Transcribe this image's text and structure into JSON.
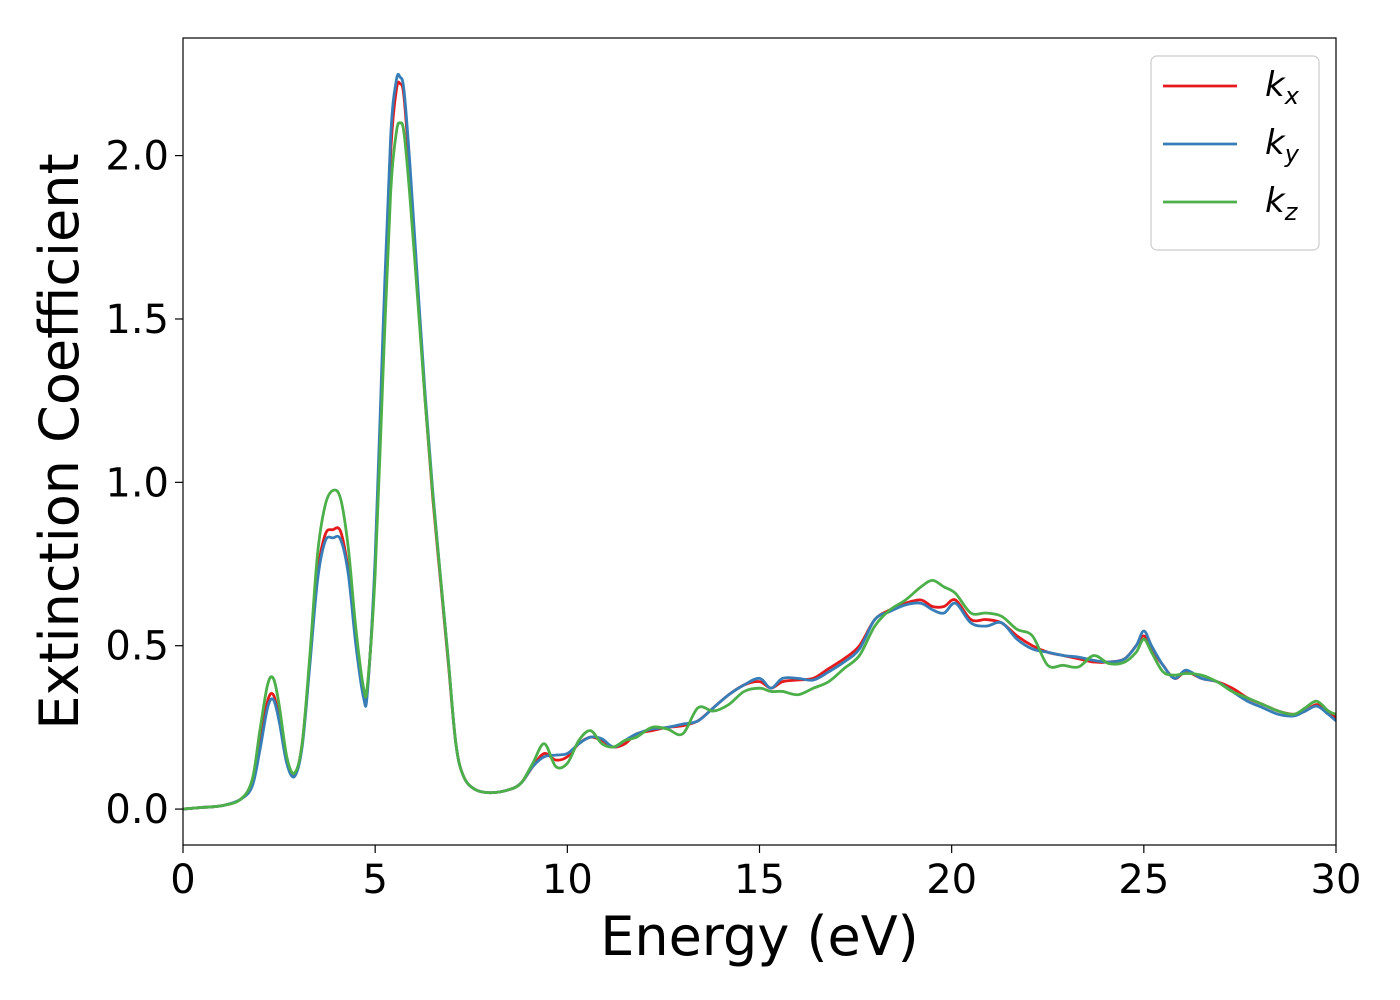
{
  "chart_data": {
    "type": "line",
    "title": "",
    "xlabel": "Energy (eV)",
    "ylabel": "Extinction Coefficient",
    "xlim": [
      0,
      30
    ],
    "ylim": [
      -0.11,
      2.36
    ],
    "xticks": [
      0,
      5,
      10,
      15,
      20,
      25,
      30
    ],
    "xtick_labels": [
      "0",
      "5",
      "10",
      "15",
      "20",
      "25",
      "30"
    ],
    "yticks": [
      0.0,
      0.5,
      1.0,
      1.5,
      2.0
    ],
    "ytick_labels": [
      "0.0",
      "0.5",
      "1.0",
      "1.5",
      "2.0"
    ],
    "grid": false,
    "legend": {
      "position": "top-right",
      "entries": [
        {
          "base": "k",
          "sub": "x",
          "color": "#e41a1c"
        },
        {
          "base": "k",
          "sub": "y",
          "color": "#377eb8"
        },
        {
          "base": "k",
          "sub": "z",
          "color": "#4daf4a"
        }
      ]
    },
    "series": [
      {
        "name": "kx",
        "color": "#e41a1c",
        "x": [
          0,
          0.5,
          1.0,
          1.5,
          1.8,
          2.0,
          2.2,
          2.35,
          2.5,
          2.7,
          2.9,
          3.1,
          3.3,
          3.5,
          3.7,
          3.9,
          4.1,
          4.3,
          4.5,
          4.7,
          4.8,
          5.0,
          5.2,
          5.4,
          5.55,
          5.65,
          5.75,
          5.9,
          6.1,
          6.3,
          6.5,
          6.7,
          6.9,
          7.1,
          7.3,
          7.6,
          8.0,
          8.5,
          8.8,
          9.1,
          9.4,
          9.7,
          10.0,
          10.3,
          10.6,
          10.9,
          11.2,
          11.5,
          11.8,
          12.2,
          12.6,
          13.0,
          13.4,
          13.8,
          14.2,
          14.6,
          15.0,
          15.3,
          15.6,
          16.0,
          16.4,
          16.8,
          17.2,
          17.6,
          18.0,
          18.4,
          18.8,
          19.2,
          19.5,
          19.8,
          20.1,
          20.5,
          20.9,
          21.3,
          21.7,
          22.1,
          22.5,
          22.9,
          23.3,
          23.7,
          24.1,
          24.5,
          24.8,
          25.0,
          25.2,
          25.5,
          25.8,
          26.1,
          26.5,
          26.9,
          27.3,
          27.7,
          28.1,
          28.5,
          28.9,
          29.2,
          29.5,
          29.8,
          30.0
        ],
        "y": [
          0.0,
          0.005,
          0.01,
          0.03,
          0.08,
          0.2,
          0.33,
          0.35,
          0.28,
          0.15,
          0.1,
          0.2,
          0.45,
          0.72,
          0.84,
          0.855,
          0.85,
          0.73,
          0.52,
          0.35,
          0.37,
          0.75,
          1.4,
          2.0,
          2.2,
          2.22,
          2.18,
          1.95,
          1.6,
          1.25,
          0.95,
          0.7,
          0.45,
          0.2,
          0.1,
          0.06,
          0.05,
          0.06,
          0.08,
          0.13,
          0.17,
          0.15,
          0.16,
          0.2,
          0.22,
          0.21,
          0.19,
          0.2,
          0.23,
          0.24,
          0.25,
          0.255,
          0.27,
          0.31,
          0.35,
          0.38,
          0.39,
          0.37,
          0.39,
          0.395,
          0.4,
          0.43,
          0.46,
          0.5,
          0.58,
          0.61,
          0.63,
          0.64,
          0.62,
          0.62,
          0.64,
          0.58,
          0.58,
          0.57,
          0.53,
          0.5,
          0.48,
          0.47,
          0.46,
          0.45,
          0.45,
          0.46,
          0.5,
          0.53,
          0.49,
          0.44,
          0.4,
          0.42,
          0.4,
          0.39,
          0.37,
          0.34,
          0.32,
          0.3,
          0.29,
          0.3,
          0.32,
          0.3,
          0.28
        ]
      },
      {
        "name": "ky",
        "color": "#377eb8",
        "x": [
          0,
          0.5,
          1.0,
          1.5,
          1.8,
          2.0,
          2.2,
          2.35,
          2.5,
          2.7,
          2.9,
          3.1,
          3.3,
          3.5,
          3.7,
          3.9,
          4.1,
          4.3,
          4.5,
          4.7,
          4.8,
          5.0,
          5.2,
          5.4,
          5.55,
          5.65,
          5.75,
          5.9,
          6.1,
          6.3,
          6.5,
          6.7,
          6.9,
          7.1,
          7.3,
          7.6,
          8.0,
          8.5,
          8.8,
          9.1,
          9.4,
          9.7,
          10.0,
          10.3,
          10.6,
          10.9,
          11.2,
          11.5,
          11.8,
          12.2,
          12.6,
          13.0,
          13.4,
          13.8,
          14.2,
          14.6,
          15.0,
          15.3,
          15.6,
          16.0,
          16.4,
          16.8,
          17.2,
          17.6,
          18.0,
          18.4,
          18.8,
          19.2,
          19.5,
          19.8,
          20.1,
          20.5,
          20.9,
          21.3,
          21.7,
          22.1,
          22.5,
          22.9,
          23.3,
          23.7,
          24.1,
          24.5,
          24.8,
          25.0,
          25.2,
          25.5,
          25.8,
          26.1,
          26.5,
          26.9,
          27.3,
          27.7,
          28.1,
          28.5,
          28.9,
          29.2,
          29.5,
          29.8,
          30.0
        ],
        "y": [
          0.0,
          0.005,
          0.01,
          0.03,
          0.07,
          0.18,
          0.31,
          0.335,
          0.27,
          0.14,
          0.1,
          0.19,
          0.44,
          0.7,
          0.82,
          0.83,
          0.825,
          0.72,
          0.5,
          0.34,
          0.36,
          0.77,
          1.45,
          2.05,
          2.23,
          2.24,
          2.2,
          1.98,
          1.62,
          1.27,
          0.97,
          0.71,
          0.46,
          0.2,
          0.1,
          0.06,
          0.05,
          0.06,
          0.08,
          0.13,
          0.16,
          0.165,
          0.17,
          0.2,
          0.22,
          0.215,
          0.19,
          0.21,
          0.23,
          0.245,
          0.25,
          0.26,
          0.27,
          0.31,
          0.35,
          0.38,
          0.4,
          0.37,
          0.4,
          0.4,
          0.395,
          0.42,
          0.45,
          0.49,
          0.58,
          0.605,
          0.625,
          0.63,
          0.61,
          0.6,
          0.63,
          0.57,
          0.56,
          0.57,
          0.52,
          0.49,
          0.48,
          0.47,
          0.465,
          0.455,
          0.45,
          0.46,
          0.5,
          0.545,
          0.5,
          0.44,
          0.4,
          0.425,
          0.4,
          0.39,
          0.36,
          0.33,
          0.31,
          0.29,
          0.285,
          0.3,
          0.315,
          0.29,
          0.27
        ]
      },
      {
        "name": "kz",
        "color": "#4daf4a",
        "x": [
          0,
          0.5,
          1.0,
          1.5,
          1.8,
          2.0,
          2.2,
          2.35,
          2.5,
          2.7,
          2.9,
          3.1,
          3.3,
          3.5,
          3.7,
          3.9,
          4.1,
          4.3,
          4.5,
          4.7,
          4.8,
          5.0,
          5.2,
          5.4,
          5.55,
          5.65,
          5.75,
          5.9,
          6.1,
          6.3,
          6.5,
          6.7,
          6.9,
          7.1,
          7.3,
          7.6,
          8.0,
          8.5,
          8.8,
          9.1,
          9.4,
          9.7,
          10.0,
          10.3,
          10.6,
          10.9,
          11.2,
          11.5,
          11.8,
          12.2,
          12.6,
          13.0,
          13.4,
          13.8,
          14.2,
          14.6,
          15.0,
          15.3,
          15.6,
          16.0,
          16.4,
          16.8,
          17.2,
          17.6,
          18.0,
          18.4,
          18.8,
          19.2,
          19.5,
          19.8,
          20.1,
          20.5,
          20.9,
          21.3,
          21.7,
          22.1,
          22.5,
          22.9,
          23.3,
          23.7,
          24.1,
          24.5,
          24.8,
          25.0,
          25.2,
          25.5,
          25.8,
          26.1,
          26.5,
          26.9,
          27.3,
          27.7,
          28.1,
          28.5,
          28.9,
          29.2,
          29.5,
          29.8,
          30.0
        ],
        "y": [
          0.0,
          0.005,
          0.01,
          0.03,
          0.09,
          0.24,
          0.38,
          0.4,
          0.32,
          0.16,
          0.11,
          0.2,
          0.47,
          0.78,
          0.93,
          0.975,
          0.95,
          0.8,
          0.55,
          0.37,
          0.38,
          0.72,
          1.32,
          1.88,
          2.07,
          2.1,
          2.07,
          1.88,
          1.57,
          1.25,
          0.96,
          0.71,
          0.46,
          0.2,
          0.1,
          0.06,
          0.05,
          0.06,
          0.08,
          0.14,
          0.2,
          0.13,
          0.14,
          0.21,
          0.24,
          0.2,
          0.19,
          0.21,
          0.22,
          0.25,
          0.245,
          0.23,
          0.31,
          0.3,
          0.32,
          0.36,
          0.37,
          0.36,
          0.36,
          0.35,
          0.37,
          0.39,
          0.43,
          0.47,
          0.56,
          0.61,
          0.64,
          0.68,
          0.7,
          0.68,
          0.66,
          0.6,
          0.6,
          0.59,
          0.55,
          0.53,
          0.44,
          0.44,
          0.435,
          0.47,
          0.445,
          0.45,
          0.48,
          0.52,
          0.48,
          0.42,
          0.41,
          0.415,
          0.41,
          0.39,
          0.36,
          0.34,
          0.32,
          0.3,
          0.29,
          0.31,
          0.33,
          0.3,
          0.29
        ]
      }
    ]
  }
}
